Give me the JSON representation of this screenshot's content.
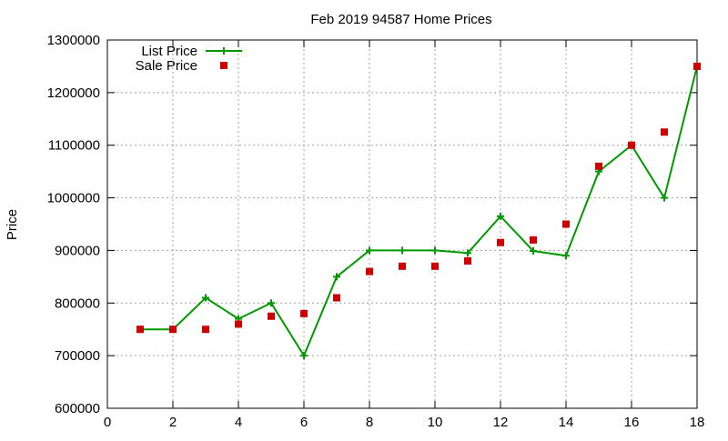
{
  "chart_data": {
    "type": "line",
    "title": "Feb 2019 94587 Home Prices",
    "xlabel": "",
    "ylabel": "Price",
    "xlim": [
      0,
      18
    ],
    "ylim": [
      600000,
      1300000
    ],
    "x_ticks": [
      0,
      2,
      4,
      6,
      8,
      10,
      12,
      14,
      16,
      18
    ],
    "y_ticks": [
      600000,
      700000,
      800000,
      900000,
      1000000,
      1100000,
      1200000,
      1300000
    ],
    "x_tick_labels": [
      "0",
      "2",
      "4",
      "6",
      "8",
      "10",
      "12",
      "14",
      "16",
      "18"
    ],
    "y_tick_labels": [
      "600000",
      "700000",
      "800000",
      "900000",
      "1000000",
      "1100000",
      "1200000",
      "1300000"
    ],
    "grid": true,
    "legend_position": "top-left",
    "series": [
      {
        "name": "List Price",
        "style": "line-with-plus-markers",
        "color": "#009900",
        "x": [
          1,
          2,
          3,
          4,
          5,
          6,
          7,
          8,
          9,
          10,
          11,
          12,
          13,
          14,
          15,
          16,
          17,
          18
        ],
        "values": [
          750000,
          750000,
          810000,
          770000,
          800000,
          700000,
          850000,
          900000,
          900000,
          900000,
          895000,
          965000,
          899000,
          890000,
          1050000,
          1100000,
          1000000,
          1250000
        ]
      },
      {
        "name": "Sale Price",
        "style": "square-markers",
        "color": "#cc0000",
        "x": [
          1,
          2,
          3,
          4,
          5,
          6,
          7,
          8,
          9,
          10,
          11,
          12,
          13,
          14,
          15,
          16,
          17,
          18
        ],
        "values": [
          750000,
          750000,
          750000,
          760000,
          775000,
          780000,
          810000,
          860000,
          870000,
          870000,
          880000,
          915000,
          920000,
          950000,
          1060000,
          1100000,
          1125000,
          1250000
        ]
      }
    ]
  }
}
